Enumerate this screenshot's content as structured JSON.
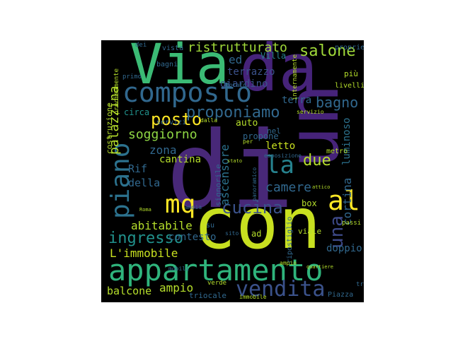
{
  "colors": {
    "background": "#000000",
    "palette": {
      "purple": "#46237a",
      "violet": "#482878",
      "blue": "#31688e",
      "teal": "#26828e",
      "green": "#35b779",
      "lime": "#6ece58",
      "yellow": "#fde725",
      "chartreuse": "#b5de2b"
    }
  },
  "words": [
    {
      "text": "Via",
      "color": "#3bbb75"
    },
    {
      "text": "da",
      "color": "#46237a"
    },
    {
      "text": "un",
      "color": "#46237a"
    },
    {
      "text": "di",
      "color": "#482878"
    },
    {
      "text": "con",
      "color": "#c8e020"
    },
    {
      "text": "appartamento",
      "color": "#2fb47c"
    },
    {
      "text": "composto",
      "color": "#31688e"
    },
    {
      "text": "vendita",
      "color": "#3b528b"
    },
    {
      "text": "piano",
      "color": "#2c728e"
    },
    {
      "text": "al",
      "color": "#fde725"
    },
    {
      "text": "mq",
      "color": "#fde725"
    },
    {
      "text": "la",
      "color": "#26828e"
    },
    {
      "text": "una",
      "color": "#3e4a89"
    },
    {
      "text": "posto",
      "color": "#fde725"
    },
    {
      "text": "proponiamo",
      "color": "#31688e"
    },
    {
      "text": "cucina",
      "color": "#3b528b"
    },
    {
      "text": "ingresso",
      "color": "#21918c"
    },
    {
      "text": "salone",
      "color": "#a0da39"
    },
    {
      "text": "ristrutturato",
      "color": "#a0da39"
    },
    {
      "text": "bagno",
      "color": "#31688e"
    },
    {
      "text": "due",
      "color": "#b5de2b"
    },
    {
      "text": "soggiorno",
      "color": "#8fd744"
    },
    {
      "text": "palazzina",
      "color": "#b5de2b"
    },
    {
      "text": "camere",
      "color": "#31688e"
    },
    {
      "text": "ascensore",
      "color": "#2c728e"
    },
    {
      "text": "abitabile",
      "color": "#b5de2b"
    },
    {
      "text": "L'immobile",
      "color": "#c8e020"
    },
    {
      "text": "balcone",
      "color": "#b5de2b"
    },
    {
      "text": "ampio",
      "color": "#b5de2b"
    },
    {
      "text": "cortina",
      "color": "#31688e"
    },
    {
      "text": "luminoso",
      "color": "#2c728e"
    },
    {
      "text": "terrazzo",
      "color": "#3b528b"
    },
    {
      "text": "giardino",
      "color": "#3b528b"
    },
    {
      "text": "zona",
      "color": "#31688e"
    },
    {
      "text": "della",
      "color": "#31688e"
    },
    {
      "text": "Rif",
      "color": "#31688e"
    },
    {
      "text": "cantina",
      "color": "#b5de2b"
    },
    {
      "text": "letto",
      "color": "#c8e020"
    },
    {
      "text": "contesto",
      "color": "#31688e"
    },
    {
      "text": "doppio",
      "color": "#31688e"
    },
    {
      "text": "terra",
      "color": "#31688e"
    },
    {
      "text": "Villa",
      "color": "#26828e"
    },
    {
      "text": "ed",
      "color": "#31688e"
    },
    {
      "text": "auto",
      "color": "#b5de2b"
    },
    {
      "text": "box",
      "color": "#b5de2b"
    },
    {
      "text": "circa",
      "color": "#21918c"
    },
    {
      "text": "viale",
      "color": "#b5de2b"
    },
    {
      "text": "costruzione",
      "color": "#b5de2b"
    },
    {
      "text": "servizi",
      "color": "#31688e"
    },
    {
      "text": "signorile",
      "color": "#31688e"
    },
    {
      "text": "triocale",
      "color": "#31688e"
    },
    {
      "text": "propone",
      "color": "#31688e"
    },
    {
      "text": "metro",
      "color": "#b5de2b"
    },
    {
      "text": "Piazza",
      "color": "#31688e"
    },
    {
      "text": "ripostiglio",
      "color": "#31688e"
    },
    {
      "text": "nel",
      "color": "#31688e"
    },
    {
      "text": "più",
      "color": "#b5de2b"
    },
    {
      "text": "livelli",
      "color": "#b5de2b"
    },
    {
      "text": "proprietà",
      "color": "#31688e"
    },
    {
      "text": "vista",
      "color": "#31688e"
    },
    {
      "text": "bagni",
      "color": "#31688e"
    },
    {
      "text": "primo",
      "color": "#31688e"
    },
    {
      "text": "precisamente",
      "color": "#b5de2b"
    },
    {
      "text": "dotato",
      "color": "#31688e"
    },
    {
      "text": "internamente",
      "color": "#b5de2b"
    },
    {
      "text": "servizio",
      "color": "#b5de2b"
    },
    {
      "text": "esposizione",
      "color": "#31688e"
    },
    {
      "text": "panoramico",
      "color": "#31688e"
    },
    {
      "text": "verde",
      "color": "#b5de2b"
    },
    {
      "text": "attico",
      "color": "#b5de2b"
    },
    {
      "text": "ampia",
      "color": "#31688e"
    },
    {
      "text": "dalla",
      "color": "#b5de2b"
    },
    {
      "text": "stato",
      "color": "#b5de2b"
    },
    {
      "text": "per",
      "color": "#b5de2b"
    },
    {
      "text": "dei",
      "color": "#31688e"
    },
    {
      "text": "Roma",
      "color": "#b5de2b"
    },
    {
      "text": "sito",
      "color": "#31688e"
    },
    {
      "text": "ad",
      "color": "#b5de2b"
    },
    {
      "text": "su",
      "color": "#31688e"
    },
    {
      "text": "tre",
      "color": "#31688e"
    },
    {
      "text": "passi",
      "color": "#b5de2b"
    },
    {
      "text": "immobile",
      "color": "#b5de2b"
    },
    {
      "text": "quartiere",
      "color": "#b5de2b"
    },
    {
      "text": "ampio",
      "color": "#b5de2b"
    },
    {
      "text": "mobili",
      "color": "#31688e"
    }
  ]
}
